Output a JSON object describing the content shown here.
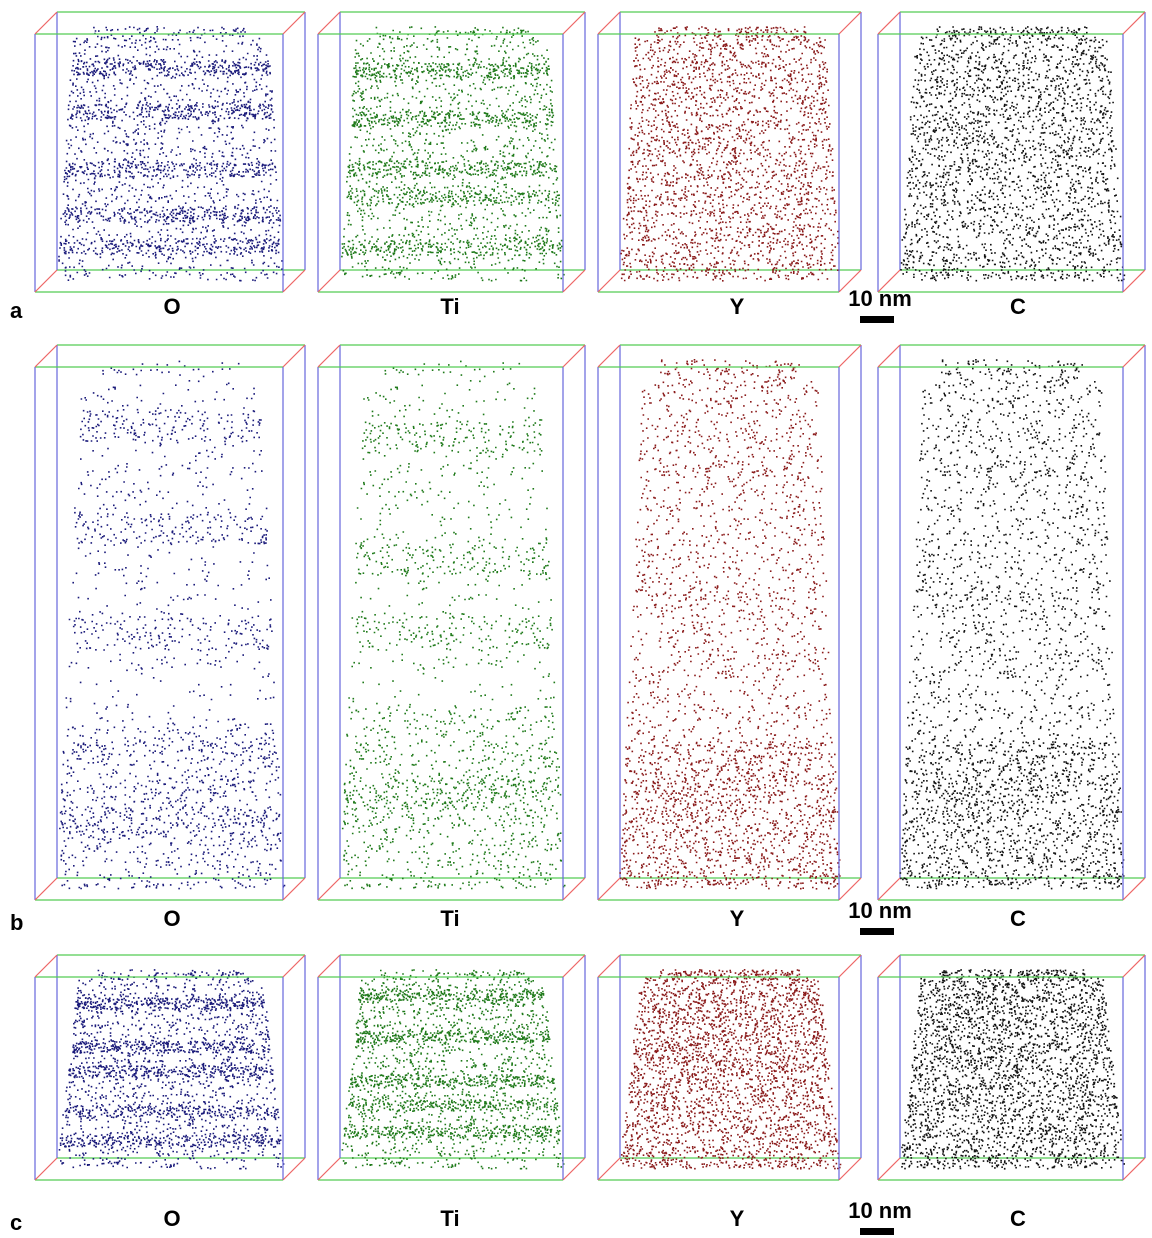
{
  "panels": [
    {
      "label": "a",
      "elements": [
        "O",
        "Ti",
        "Y",
        "C"
      ],
      "scale_bar": "10 nm"
    },
    {
      "label": "b",
      "elements": [
        "O",
        "Ti",
        "Y",
        "C"
      ],
      "scale_bar": "10 nm"
    },
    {
      "label": "c",
      "elements": [
        "O",
        "Ti",
        "Y",
        "C"
      ],
      "scale_bar": "10 nm"
    }
  ]
}
